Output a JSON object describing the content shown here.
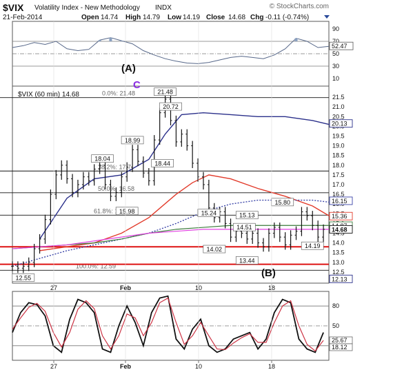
{
  "header": {
    "symbol": "$VIX",
    "name": "Volatility Index - New Methodology",
    "exchange": "INDX",
    "watermark": "© StockCharts.com",
    "date": "21-Feb-2014",
    "open_label": "Open",
    "open": "14.74",
    "high_label": "High",
    "high": "14.79",
    "low_label": "Low",
    "low": "14.19",
    "close_label": "Close",
    "close": "14.68",
    "chg_label": "Chg",
    "chg": "-0.11 (-0.74%)"
  },
  "annotations": {
    "wave_a": "(A)",
    "wave_b": "(B)",
    "wave_c": "C"
  },
  "colors": {
    "price": "#111111",
    "ma_blue": "#2a2f8a",
    "ma_red": "#e23a2a",
    "ma_dotted": "#3a44a8",
    "ma_green": "#3a7a3a",
    "ma_magenta": "#e040e0",
    "hline_red": "#dd1111",
    "stoch_fast": "#111111",
    "stoch_slow": "#cc3344",
    "rsi_line": "#556688",
    "rsi_fill": "#8aa0c0",
    "wave_c": "#8a2be2"
  },
  "chart_data": [
    {
      "type": "line",
      "panel": "rsi",
      "ylim": [
        0,
        100
      ],
      "y_ticks": [
        10,
        30,
        50,
        70,
        90
      ],
      "reference_lines": [
        70,
        50,
        30
      ],
      "last_value_label": "52.47",
      "x": [
        0,
        4,
        8,
        12,
        16,
        20,
        24,
        28,
        32,
        36,
        40,
        44,
        48,
        52,
        56,
        60,
        64,
        68,
        72,
        76,
        80,
        84,
        88,
        92,
        96,
        100,
        104,
        108,
        112,
        116
      ],
      "values": [
        60,
        63,
        68,
        65,
        70,
        58,
        55,
        57,
        72,
        76,
        71,
        66,
        55,
        48,
        42,
        38,
        35,
        34,
        36,
        40,
        44,
        46,
        44,
        42,
        48,
        58,
        75,
        70,
        60,
        62
      ]
    },
    {
      "type": "line",
      "panel": "price",
      "title": "$VIX (60 min) 14.68",
      "ylim": [
        12.0,
        22.0
      ],
      "y_ticks": [
        "12.5",
        "13.0",
        "13.5",
        "14.0",
        "14.5",
        "15.0",
        "15.5",
        "16.0",
        "16.5",
        "17.0",
        "17.5",
        "18.0",
        "18.5",
        "19.0",
        "19.5",
        "20.0",
        "20.5",
        "21.0",
        "21.5"
      ],
      "x_ticks": [
        "27",
        "Feb",
        "10",
        "18"
      ],
      "fib_labels": [
        "0.0%: 21.48",
        "38.2%: 17.7",
        "50.0%: 16.58",
        "61.8%: 15.43",
        "100.0%: 12.59"
      ],
      "price_labels": [
        {
          "x": 4,
          "value": 12.55,
          "text": "12.55"
        },
        {
          "x": 33,
          "value": 18.04,
          "text": "18.04"
        },
        {
          "x": 44,
          "value": 18.99,
          "text": "18.99"
        },
        {
          "x": 56,
          "value": 21.48,
          "text": "21.48"
        },
        {
          "x": 58,
          "value": 20.72,
          "text": "20.72"
        },
        {
          "x": 55,
          "value": 18.44,
          "text": "18.44"
        },
        {
          "x": 42,
          "value": 15.98,
          "text": "15.98"
        },
        {
          "x": 72,
          "value": 15.24,
          "text": "15.24"
        },
        {
          "x": 74,
          "value": 14.02,
          "text": "14.02"
        },
        {
          "x": 86,
          "value": 15.13,
          "text": "15.13"
        },
        {
          "x": 85,
          "value": 14.51,
          "text": "14.51"
        },
        {
          "x": 86,
          "value": 13.44,
          "text": "13.44"
        },
        {
          "x": 99,
          "value": 15.8,
          "text": "15.80"
        },
        {
          "x": 110,
          "value": 14.19,
          "text": "14.19"
        }
      ],
      "right_labels": [
        {
          "value": 20.13,
          "text": "20.13",
          "color": "#2a2f8a"
        },
        {
          "value": 16.15,
          "text": "16.15",
          "color": "#3a44a8"
        },
        {
          "value": 15.36,
          "text": "15.36",
          "color": "#e23a2a"
        },
        {
          "value": 14.87,
          "text": "14.87",
          "color": "#3a7a3a"
        },
        {
          "value": 14.68,
          "text": "14.68",
          "color": "#111111"
        },
        {
          "value": 12.13,
          "text": "12.13",
          "color": "#2a2f8a"
        }
      ],
      "fib_levels": [
        21.48,
        17.7,
        16.58,
        15.43,
        12.59
      ],
      "support_lines": [
        13.8,
        12.9
      ],
      "series": [
        {
          "name": "VIX",
          "x": [
            0,
            2,
            4,
            6,
            8,
            10,
            12,
            14,
            16,
            18,
            20,
            22,
            24,
            26,
            28,
            30,
            32,
            34,
            36,
            38,
            40,
            42,
            44,
            46,
            48,
            50,
            52,
            54,
            56,
            58,
            60,
            62,
            64,
            66,
            68,
            70,
            72,
            74,
            76,
            78,
            80,
            82,
            84,
            86,
            88,
            90,
            92,
            94,
            96,
            98,
            100,
            102,
            104,
            106,
            108,
            110,
            112,
            114
          ],
          "values": [
            12.8,
            12.7,
            12.8,
            13.0,
            13.7,
            14.2,
            15.2,
            16.5,
            17.5,
            18.0,
            17.3,
            16.6,
            17.0,
            17.4,
            17.2,
            17.8,
            18.0,
            17.0,
            16.4,
            16.6,
            17.4,
            17.9,
            18.8,
            18.2,
            17.6,
            17.2,
            19.3,
            20.7,
            21.4,
            20.3,
            19.2,
            19.6,
            19.0,
            18.1,
            17.4,
            17.0,
            15.8,
            15.3,
            15.6,
            15.0,
            14.3,
            14.6,
            14.5,
            14.2,
            14.5,
            14.0,
            13.8,
            14.5,
            14.8,
            14.3,
            13.9,
            14.4,
            14.6,
            15.6,
            15.4,
            14.9,
            14.3,
            14.7
          ]
        },
        {
          "name": "MA blue",
          "x": [
            10,
            20,
            30,
            40,
            50,
            56,
            62,
            70,
            80,
            90,
            100,
            110,
            116
          ],
          "values": [
            14.2,
            16.3,
            17.3,
            17.5,
            18.3,
            19.6,
            20.6,
            20.7,
            20.6,
            20.5,
            20.5,
            20.3,
            20.1
          ]
        },
        {
          "name": "MA red",
          "x": [
            10,
            20,
            30,
            40,
            50,
            60,
            66,
            72,
            80,
            90,
            100,
            110,
            116
          ],
          "values": [
            13.6,
            13.8,
            14.0,
            14.5,
            15.3,
            16.5,
            17.1,
            17.5,
            17.3,
            16.8,
            16.4,
            15.9,
            15.4
          ]
        },
        {
          "name": "MA dotted",
          "x": [
            0,
            10,
            20,
            30,
            40,
            50,
            60,
            70,
            80,
            90,
            100,
            110,
            116
          ],
          "values": [
            12.8,
            13.2,
            13.6,
            13.9,
            14.2,
            14.5,
            15.0,
            15.6,
            16.0,
            16.2,
            16.2,
            16.2,
            16.1
          ]
        },
        {
          "name": "MA green",
          "x": [
            0,
            10,
            20,
            30,
            40,
            50,
            60,
            70,
            80,
            90,
            100,
            110,
            116
          ],
          "values": [
            13.7,
            13.8,
            13.9,
            14.0,
            14.2,
            14.5,
            14.7,
            14.8,
            14.9,
            14.9,
            14.9,
            14.9,
            14.9
          ]
        },
        {
          "name": "MA magenta",
          "x": [
            0,
            10,
            20,
            30,
            40,
            50,
            60,
            70,
            80,
            90,
            100,
            110,
            116
          ],
          "values": [
            13.7,
            13.8,
            13.9,
            14.1,
            14.3,
            14.5,
            14.6,
            14.7,
            14.7,
            14.7,
            14.7,
            14.7,
            14.7
          ]
        }
      ]
    },
    {
      "type": "line",
      "panel": "stochastic",
      "ylim": [
        0,
        100
      ],
      "y_ticks": [
        20,
        50,
        80
      ],
      "x_ticks": [
        "27",
        "Feb",
        "10",
        "18"
      ],
      "last_value_labels": [
        "25.67",
        "18.12"
      ],
      "series": [
        {
          "name": "fast",
          "x": [
            0,
            3,
            6,
            9,
            12,
            15,
            18,
            21,
            24,
            27,
            30,
            33,
            36,
            39,
            42,
            45,
            48,
            51,
            54,
            57,
            60,
            63,
            66,
            69,
            72,
            75,
            78,
            81,
            84,
            87,
            90,
            93,
            96,
            99,
            102,
            105,
            108,
            111,
            114
          ],
          "values": [
            40,
            70,
            85,
            82,
            65,
            20,
            10,
            60,
            90,
            85,
            70,
            15,
            10,
            50,
            80,
            55,
            20,
            70,
            92,
            95,
            30,
            15,
            45,
            60,
            20,
            10,
            15,
            30,
            35,
            40,
            15,
            30,
            70,
            90,
            85,
            30,
            15,
            10,
            40
          ]
        },
        {
          "name": "slow",
          "x": [
            0,
            3,
            6,
            9,
            12,
            15,
            18,
            21,
            24,
            27,
            30,
            33,
            36,
            39,
            42,
            45,
            48,
            51,
            54,
            57,
            60,
            63,
            66,
            69,
            72,
            75,
            78,
            81,
            84,
            87,
            90,
            93,
            96,
            99,
            102,
            105,
            108,
            111,
            114
          ],
          "values": [
            45,
            62,
            78,
            84,
            72,
            40,
            18,
            40,
            75,
            88,
            76,
            35,
            15,
            35,
            68,
            62,
            35,
            55,
            85,
            92,
            55,
            22,
            35,
            55,
            35,
            15,
            14,
            24,
            32,
            38,
            25,
            25,
            55,
            80,
            88,
            50,
            22,
            12,
            28
          ]
        }
      ]
    }
  ]
}
